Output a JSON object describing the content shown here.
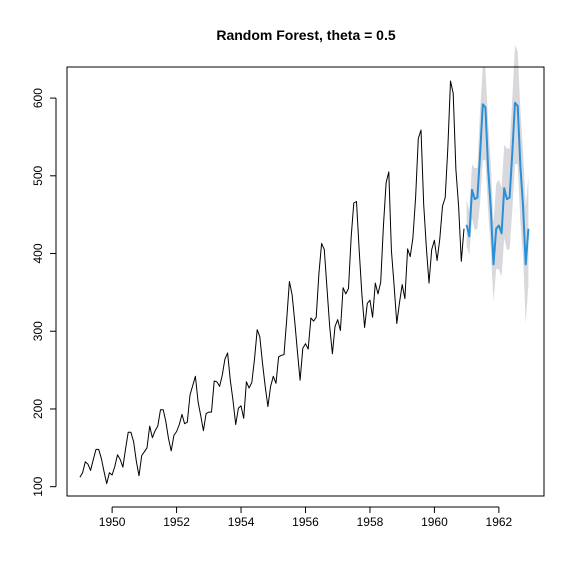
{
  "chart_data": {
    "type": "line",
    "title": "Random Forest, theta = 0.5",
    "xlabel": "",
    "ylabel": "",
    "xlim": [
      1948.6,
      1963.4
    ],
    "ylim": [
      88,
      640
    ],
    "x_ticks": [
      "1950",
      "1952",
      "1954",
      "1956",
      "1958",
      "1960",
      "1962"
    ],
    "y_ticks": [
      "100",
      "200",
      "300",
      "400",
      "500",
      "600"
    ],
    "grid": false,
    "series": [
      {
        "role": "history",
        "color": "#000000",
        "x_start": 1949.0,
        "x_step": 0.0833333,
        "values": [
          112,
          118,
          132,
          129,
          121,
          135,
          148,
          148,
          136,
          119,
          104,
          118,
          115,
          126,
          141,
          135,
          125,
          149,
          170,
          170,
          158,
          133,
          114,
          140,
          145,
          150,
          178,
          163,
          172,
          178,
          199,
          199,
          184,
          162,
          146,
          166,
          171,
          180,
          193,
          181,
          183,
          218,
          230,
          242,
          209,
          191,
          172,
          194,
          196,
          196,
          236,
          235,
          229,
          243,
          264,
          272,
          237,
          211,
          180,
          201,
          204,
          188,
          235,
          227,
          234,
          264,
          302,
          293,
          259,
          229,
          203,
          229,
          242,
          233,
          267,
          269,
          270,
          315,
          364,
          347,
          312,
          274,
          237,
          278,
          284,
          277,
          317,
          313,
          318,
          374,
          413,
          405,
          355,
          306,
          271,
          306,
          315,
          301,
          356,
          348,
          355,
          422,
          465,
          467,
          404,
          347,
          305,
          336,
          340,
          318,
          362,
          348,
          363,
          435,
          491,
          505,
          404,
          359,
          310,
          337,
          360,
          342,
          406,
          396,
          420,
          472,
          548,
          559,
          463,
          407,
          362,
          405,
          417,
          391,
          419,
          461,
          472,
          535,
          622,
          606,
          508,
          461,
          390,
          432
        ]
      },
      {
        "role": "forecast",
        "color": "#2b8fd8",
        "x_start": 1961.0,
        "x_step": 0.0833333,
        "values": [
          437,
          422,
          482,
          470,
          472,
          528,
          592,
          588,
          510,
          458,
          386,
          432,
          436,
          426,
          484,
          470,
          472,
          530,
          594,
          590,
          512,
          460,
          386,
          432
        ],
        "lower": [
          410,
          398,
          445,
          430,
          432,
          465,
          520,
          520,
          455,
          405,
          338,
          380,
          380,
          370,
          420,
          405,
          405,
          455,
          515,
          515,
          440,
          395,
          310,
          360
        ],
        "upper": [
          470,
          455,
          515,
          510,
          510,
          585,
          640,
          640,
          570,
          515,
          440,
          490,
          495,
          485,
          540,
          535,
          535,
          600,
          668,
          660,
          585,
          530,
          460,
          500
        ]
      }
    ],
    "band_color": "#d9d9dd"
  }
}
